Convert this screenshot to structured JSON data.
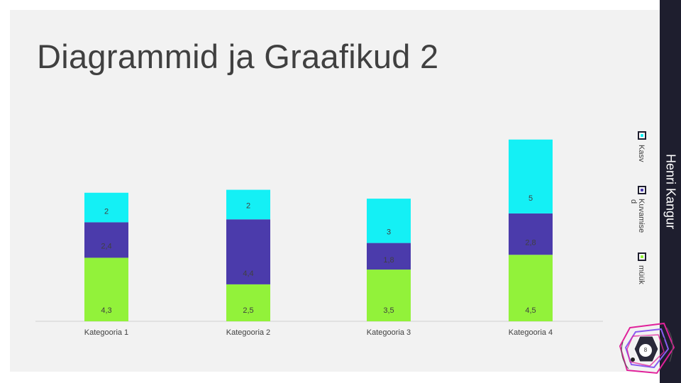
{
  "slide": {
    "title": "Diagrammid ja Graafikud 2",
    "author": "Henri Kangur",
    "page_number": "8"
  },
  "colors": {
    "series_bottom": "#92f23a",
    "series_middle": "#4b3bab",
    "series_top": "#14f0f5",
    "right_bar": "#1e1e2e",
    "accent": "#e0219a"
  },
  "chart_data": {
    "type": "bar",
    "stacked": true,
    "categories": [
      "Kategooria 1",
      "Kategooria 2",
      "Kategooria 3",
      "Kategooria 4"
    ],
    "series": [
      {
        "name": "müük",
        "values": [
          4.3,
          2.5,
          3.5,
          4.5
        ],
        "labels": [
          "4,3",
          "2,5",
          "3,5",
          "4,5"
        ]
      },
      {
        "name": "kuvamised",
        "values": [
          2.4,
          4.4,
          1.8,
          2.8
        ],
        "labels": [
          "2,4",
          "4,4",
          "1,8",
          "2,8"
        ]
      },
      {
        "name": "Kasv",
        "values": [
          2,
          2,
          3,
          5
        ],
        "labels": [
          "2",
          "2",
          "3",
          "5"
        ]
      }
    ],
    "legend_entries": [
      "Kasv",
      "Kuvamise",
      "d",
      "müük"
    ],
    "legend_position": "right",
    "ylim": [
      0,
      13.2
    ],
    "grid": false
  }
}
